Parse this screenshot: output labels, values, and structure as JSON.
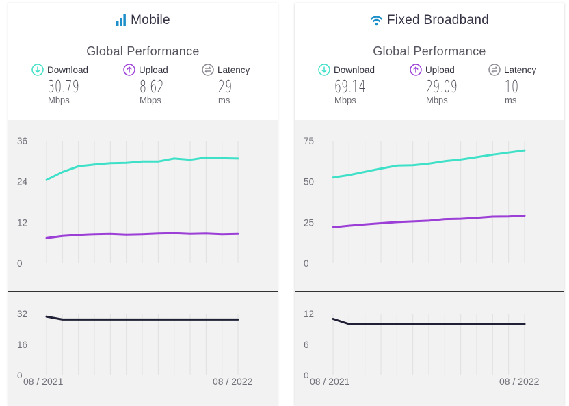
{
  "panels": [
    {
      "title": "Mobile",
      "icon": "signal-bars-icon",
      "subtitle": "Global Performance",
      "metrics": [
        {
          "label": "Download",
          "value": "30.79",
          "unit": "Mbps",
          "icon": "download-arrow-icon"
        },
        {
          "label": "Upload",
          "value": "8.62",
          "unit": "Mbps",
          "icon": "upload-arrow-icon"
        },
        {
          "label": "Latency",
          "value": "29",
          "unit": "ms",
          "icon": "latency-icon"
        }
      ],
      "start_label": "08 / 2021",
      "end_label": "08 / 2022"
    },
    {
      "title": "Fixed Broadband",
      "icon": "wifi-icon",
      "subtitle": "Global Performance",
      "metrics": [
        {
          "label": "Download",
          "value": "69.14",
          "unit": "Mbps",
          "icon": "download-arrow-icon"
        },
        {
          "label": "Upload",
          "value": "29.09",
          "unit": "Mbps",
          "icon": "upload-arrow-icon"
        },
        {
          "label": "Latency",
          "value": "10",
          "unit": "ms",
          "icon": "latency-icon"
        }
      ],
      "start_label": "08 / 2021",
      "end_label": "08 / 2022"
    }
  ],
  "colors": {
    "download": "#3fe0c8",
    "upload": "#9b3fd6",
    "latency": "#202036",
    "title_icon": "#1e8fc8",
    "grid": "#e0e0e0"
  },
  "chart_data": [
    {
      "type": "line",
      "panel": "Mobile",
      "x": [
        "08/2021",
        "09/2021",
        "10/2021",
        "11/2021",
        "12/2021",
        "01/2022",
        "02/2022",
        "03/2022",
        "04/2022",
        "05/2022",
        "06/2022",
        "07/2022",
        "08/2022"
      ],
      "ylim": [
        0,
        36
      ],
      "yticks": [
        "36",
        "24",
        "12",
        "0"
      ],
      "series": [
        {
          "name": "Download",
          "values": [
            24.5,
            26.8,
            28.5,
            29.0,
            29.4,
            29.5,
            29.9,
            29.9,
            30.8,
            30.4,
            31.1,
            30.9,
            30.8
          ]
        },
        {
          "name": "Upload",
          "values": [
            7.4,
            8.0,
            8.3,
            8.5,
            8.6,
            8.4,
            8.5,
            8.7,
            8.8,
            8.6,
            8.7,
            8.5,
            8.6
          ]
        }
      ]
    },
    {
      "type": "line",
      "panel": "Mobile",
      "x": [
        "08/2021",
        "09/2021",
        "10/2021",
        "11/2021",
        "12/2021",
        "01/2022",
        "02/2022",
        "03/2022",
        "04/2022",
        "05/2022",
        "06/2022",
        "07/2022",
        "08/2022"
      ],
      "ylim": [
        0,
        32
      ],
      "yticks": [
        "32",
        "16",
        "0"
      ],
      "series": [
        {
          "name": "Latency",
          "values": [
            30.5,
            29,
            29,
            29,
            29,
            29,
            29,
            29,
            29,
            29,
            29,
            29,
            29
          ]
        }
      ]
    },
    {
      "type": "line",
      "panel": "Fixed Broadband",
      "x": [
        "08/2021",
        "09/2021",
        "10/2021",
        "11/2021",
        "12/2021",
        "01/2022",
        "02/2022",
        "03/2022",
        "04/2022",
        "05/2022",
        "06/2022",
        "07/2022",
        "08/2022"
      ],
      "ylim": [
        0,
        75
      ],
      "yticks": [
        "75",
        "50",
        "25",
        "0"
      ],
      "series": [
        {
          "name": "Download",
          "values": [
            52.5,
            54.0,
            56.0,
            58.0,
            59.8,
            60.0,
            61.0,
            62.5,
            63.5,
            65.0,
            66.5,
            67.8,
            69.1
          ]
        },
        {
          "name": "Upload",
          "values": [
            22.0,
            23.0,
            23.8,
            24.5,
            25.2,
            25.6,
            26.0,
            27.0,
            27.2,
            27.8,
            28.5,
            28.6,
            29.1
          ]
        }
      ]
    },
    {
      "type": "line",
      "panel": "Fixed Broadband",
      "x": [
        "08/2021",
        "09/2021",
        "10/2021",
        "11/2021",
        "12/2021",
        "01/2022",
        "02/2022",
        "03/2022",
        "04/2022",
        "05/2022",
        "06/2022",
        "07/2022",
        "08/2022"
      ],
      "ylim": [
        0,
        12
      ],
      "yticks": [
        "12",
        "6",
        "0"
      ],
      "series": [
        {
          "name": "Latency",
          "values": [
            11,
            10,
            10,
            10,
            10,
            10,
            10,
            10,
            10,
            10,
            10,
            10,
            10
          ]
        }
      ]
    }
  ]
}
